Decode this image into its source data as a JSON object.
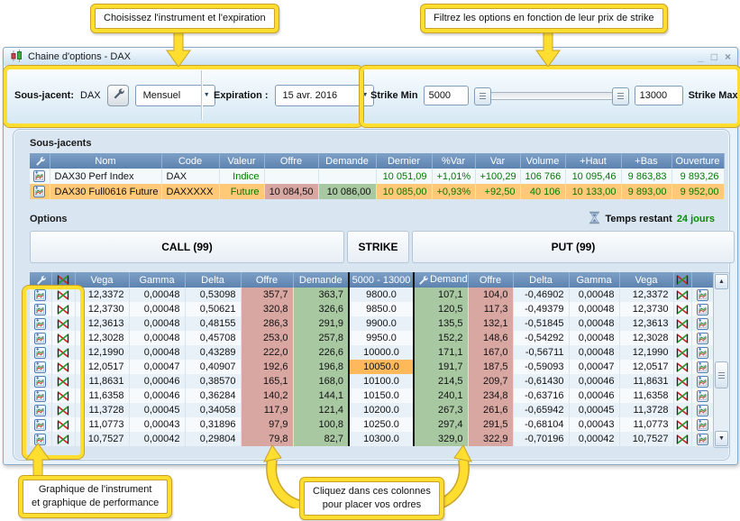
{
  "callouts": {
    "choose_instrument": "Choisissez l'instrument et l'expiration",
    "filter_strikes": "Filtrez les options en fonction de leur prix de strike",
    "graph_line1": "Graphique de l'instrument",
    "graph_line2": "et graphique de performance",
    "orders_line1": "Cliquez dans ces colonnes",
    "orders_line2": "pour placer vos ordres"
  },
  "window": {
    "title": "Chaine d'options - DAX",
    "minimize": "_",
    "maximize": "□",
    "close": "×"
  },
  "toolbar": {
    "underlying_label": "Sous-jacent:",
    "underlying_value": "DAX",
    "period_value": "Mensuel",
    "expiration_label": "Expiration :",
    "expiration_value": "15 avr. 2016",
    "strike_min_label": "Strike Min",
    "strike_min_value": "5000",
    "strike_max_value": "13000",
    "strike_max_label": "Strike Max"
  },
  "icons": {
    "dropdown_arrow": "▼",
    "scroll_up": "▲",
    "scroll_down": "▼"
  },
  "underlyings": {
    "section_title": "Sous-jacents",
    "columns": [
      "Nom",
      "Code",
      "Valeur",
      "Offre",
      "Demande",
      "Dernier",
      "%Var",
      "Var",
      "Volume",
      "+Haut",
      "+Bas",
      "Ouverture"
    ],
    "rows": [
      [
        "DAX30 Perf Index",
        "DAX",
        "Indice",
        "",
        "",
        "10 051,09",
        "+1,01%",
        "+100,29",
        "106 766",
        "10 095,46",
        "9 863,83",
        "9 893,26"
      ],
      [
        "DAX30 Full0616 Future",
        "DAXXXXX",
        "Future",
        "10 084,50",
        "10 086,00",
        "10 085,00",
        "+0,93%",
        "+92,50",
        "40 106",
        "10 133,00",
        "9 893,00",
        "9 952,00"
      ]
    ]
  },
  "options": {
    "section_title": "Options",
    "time_remaining_label": "Temps restant",
    "time_remaining_value": "24 jours",
    "call_header": "CALL (99)",
    "strike_header": "STRIKE",
    "put_header": "PUT (99)",
    "strike_range": "5000 - 13000",
    "call_columns": [
      "Vega",
      "Gamma",
      "Delta",
      "Offre",
      "Demande"
    ],
    "put_columns": [
      "Demande",
      "Offre",
      "Delta",
      "Gamma",
      "Vega"
    ],
    "atm_strike": "10050.0",
    "rows": [
      [
        "12,3372",
        "0,00048",
        "0,53098",
        "357,7",
        "363,7",
        "9800.0",
        "107,1",
        "104,0",
        "-0,46902",
        "0,00048",
        "12,3372"
      ],
      [
        "12,3730",
        "0,00048",
        "0,50621",
        "320,8",
        "326,6",
        "9850.0",
        "120,5",
        "117,3",
        "-0,49379",
        "0,00048",
        "12,3730"
      ],
      [
        "12,3613",
        "0,00048",
        "0,48155",
        "286,3",
        "291,9",
        "9900.0",
        "135,5",
        "132,1",
        "-0,51845",
        "0,00048",
        "12,3613"
      ],
      [
        "12,3028",
        "0,00048",
        "0,45708",
        "253,0",
        "257,8",
        "9950.0",
        "152,2",
        "148,6",
        "-0,54292",
        "0,00048",
        "12,3028"
      ],
      [
        "12,1990",
        "0,00048",
        "0,43289",
        "222,0",
        "226,6",
        "10000.0",
        "171,1",
        "167,0",
        "-0,56711",
        "0,00048",
        "12,1990"
      ],
      [
        "12,0517",
        "0,00047",
        "0,40907",
        "192,6",
        "196,8",
        "10050.0",
        "191,7",
        "187,5",
        "-0,59093",
        "0,00047",
        "12,0517"
      ],
      [
        "11,8631",
        "0,00046",
        "0,38570",
        "165,1",
        "168,0",
        "10100.0",
        "214,5",
        "209,7",
        "-0,61430",
        "0,00046",
        "11,8631"
      ],
      [
        "11,6358",
        "0,00046",
        "0,36284",
        "140,2",
        "144,1",
        "10150.0",
        "240,1",
        "234,8",
        "-0,63716",
        "0,00046",
        "11,6358"
      ],
      [
        "11,3728",
        "0,00045",
        "0,34058",
        "117,9",
        "121,4",
        "10200.0",
        "267,3",
        "261,6",
        "-0,65942",
        "0,00045",
        "11,3728"
      ],
      [
        "11,0773",
        "0,00043",
        "0,31896",
        "97,9",
        "100,8",
        "10250.0",
        "297,4",
        "291,5",
        "-0,68104",
        "0,00043",
        "11,0773"
      ],
      [
        "10,7527",
        "0,00042",
        "0,29804",
        "79,8",
        "82,7",
        "10300.0",
        "329,0",
        "322,9",
        "-0,70196",
        "0,00042",
        "10,7527"
      ]
    ]
  },
  "colors": {
    "bid_bg": "#D9A7A2",
    "ask_bg": "#A8C8A2",
    "selected_row_bg": "#FFC978",
    "atm_strike_bg": "#FFB95A",
    "positive_text": "#067806",
    "header_bg": "#6A8FB8",
    "callout_yellow": "#FFDE2F",
    "callout_outline": "#C9A227"
  }
}
